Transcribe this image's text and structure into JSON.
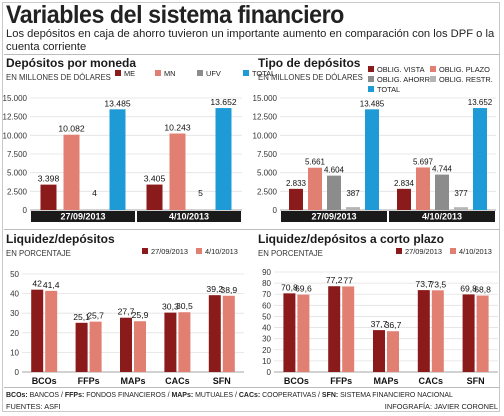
{
  "title": "Variables del sistema financiero",
  "subtitle": "Los depósitos en caja de ahorro tuvieron un importante aumento en comparación con los DPF o la cuenta corriente",
  "colors": {
    "me": "#8b1a1a",
    "mn": "#e07f72",
    "ufv": "#8c8c8c",
    "total": "#1e9bd7",
    "vista": "#8b1a1a",
    "plazo": "#e07f72",
    "ahorro": "#8c8c8c",
    "restr": "#b5b5b5",
    "bar_dark": "#8b1a1a",
    "bar_light": "#e07f72",
    "grid": "#e2e2e2",
    "date_band": "#1a1a1a"
  },
  "chart_data": [
    {
      "id": "depositos-por-moneda",
      "type": "bar",
      "title": "Depósitos por moneda",
      "ylabel": "EN MILLONES DE DÓLARES",
      "ylim": [
        0,
        15000
      ],
      "yticks": [
        "0",
        "2.500",
        "5.000",
        "7.500",
        "10.000",
        "12.500",
        "15.000"
      ],
      "grid": true,
      "legend_position": "top-right",
      "categories": [
        "27/09/2013",
        "4/10/2013"
      ],
      "series": [
        {
          "name": "ME",
          "color_key": "me",
          "values": [
            3398,
            3405
          ],
          "labels": [
            "3.398",
            "3.405"
          ]
        },
        {
          "name": "MN",
          "color_key": "mn",
          "values": [
            10082,
            10243
          ],
          "labels": [
            "10.082",
            "10.243"
          ]
        },
        {
          "name": "UFV",
          "color_key": "ufv",
          "values": [
            4,
            5
          ],
          "labels": [
            "4",
            "5"
          ]
        },
        {
          "name": "TOTAL",
          "color_key": "total",
          "values": [
            13485,
            13652
          ],
          "labels": [
            "13.485",
            "13.652"
          ]
        }
      ]
    },
    {
      "id": "tipo-de-depositos",
      "type": "bar",
      "title": "Tipo de depósitos",
      "ylabel": "EN MILLONES DE DÓLARES",
      "ylim": [
        0,
        15000
      ],
      "yticks": [
        "0",
        "2.500",
        "5.000",
        "7.500",
        "10.000",
        "12.500",
        "15.000"
      ],
      "grid": true,
      "legend_position": "top-right",
      "categories": [
        "27/09/2013",
        "4/10/2013"
      ],
      "series": [
        {
          "name": "OBLIG. VISTA",
          "color_key": "vista",
          "values": [
            2833,
            2834
          ],
          "labels": [
            "2.833",
            "2.834"
          ]
        },
        {
          "name": "OBLIG. PLAZO",
          "color_key": "plazo",
          "values": [
            5661,
            5697
          ],
          "labels": [
            "5.661",
            "5.697"
          ]
        },
        {
          "name": "OBLIG. AHORRO",
          "color_key": "ahorro",
          "values": [
            4604,
            4744
          ],
          "labels": [
            "4.604",
            "4.744"
          ]
        },
        {
          "name": "OBLIG. RESTR.",
          "color_key": "restr",
          "values": [
            387,
            377
          ],
          "labels": [
            "387",
            "377"
          ]
        },
        {
          "name": "TOTAL",
          "color_key": "total",
          "values": [
            13485,
            13652
          ],
          "labels": [
            "13.485",
            "13.652"
          ]
        }
      ]
    },
    {
      "id": "liquidez-depositos",
      "type": "bar",
      "title": "Liquidez/depósitos",
      "ylabel": "EN PORCENTAJE",
      "ylim": [
        0,
        50
      ],
      "yticks": [
        "0",
        "10",
        "20",
        "30",
        "40",
        "50"
      ],
      "grid": true,
      "legend_position": "top-right",
      "categories": [
        "BCOs",
        "FFPs",
        "MAPs",
        "CACs",
        "SFN"
      ],
      "series": [
        {
          "name": "27/09/2013",
          "color_key": "bar_dark",
          "values": [
            42,
            25.1,
            27.7,
            30.3,
            39.2
          ],
          "labels": [
            "42",
            "25,1",
            "27,7",
            "30,3",
            "39,2"
          ]
        },
        {
          "name": "4/10/2013",
          "color_key": "bar_light",
          "values": [
            41.4,
            25.7,
            25.9,
            30.5,
            38.9
          ],
          "labels": [
            "41,4",
            "25,7",
            "25,9",
            "30,5",
            "38,9"
          ]
        }
      ]
    },
    {
      "id": "liquidez-depositos-corto-plazo",
      "type": "bar",
      "title": "Liquidez/depósitos a corto plazo",
      "ylabel": "EN PORCENTAJE",
      "ylim": [
        0,
        90
      ],
      "yticks": [
        "0",
        "10",
        "20",
        "30",
        "40",
        "50",
        "60",
        "70",
        "80",
        "90"
      ],
      "grid": true,
      "legend_position": "top-right",
      "categories": [
        "BCOs",
        "FFPs",
        "MAPs",
        "CACs",
        "SFN"
      ],
      "series": [
        {
          "name": "27/09/2013",
          "color_key": "bar_dark",
          "values": [
            70.8,
            77.2,
            37.7,
            73.7,
            69.8
          ],
          "labels": [
            "70,8",
            "77,2",
            "37,7",
            "73,7",
            "69,8"
          ]
        },
        {
          "name": "4/10/2013",
          "color_key": "bar_light",
          "values": [
            69.6,
            77,
            36.7,
            73.5,
            68.8
          ],
          "labels": [
            "69,6",
            "77",
            "36,7",
            "73,5",
            "68,8"
          ]
        }
      ]
    }
  ],
  "footer": {
    "definitions": [
      {
        "abbr": "BCOs",
        "text": "BANCOS / "
      },
      {
        "abbr": "FFPs",
        "text": "FONDOS FINANCIEROS / "
      },
      {
        "abbr": "MAPs",
        "text": "MUTUALES / "
      },
      {
        "abbr": "CACs",
        "text": "COOPERATIVAS / "
      },
      {
        "abbr": "SFN",
        "text": "SISTEMA FINANCIERO NACIONAL"
      }
    ],
    "source": "FUENTES: ASFI",
    "credit": "INFOGRAFÍA: JAVIER CORONEL"
  }
}
